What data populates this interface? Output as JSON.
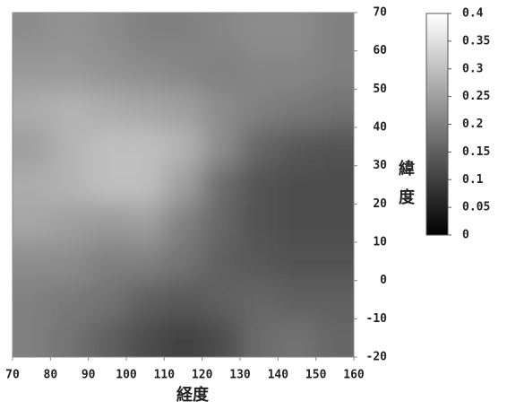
{
  "chart_data": {
    "type": "heatmap",
    "xlabel": "経度",
    "ylabel": "緯度",
    "x": [
      70,
      80,
      90,
      100,
      110,
      120,
      130,
      140,
      150,
      160
    ],
    "y": [
      -20,
      -10,
      0,
      10,
      20,
      30,
      40,
      50,
      60,
      70
    ],
    "z": [
      [
        0.2,
        0.18,
        0.15,
        0.12,
        0.1,
        0.12,
        0.17,
        0.18,
        0.16
      ],
      [
        0.2,
        0.19,
        0.18,
        0.15,
        0.14,
        0.15,
        0.16,
        0.15,
        0.15
      ],
      [
        0.22,
        0.22,
        0.2,
        0.2,
        0.18,
        0.15,
        0.14,
        0.13,
        0.13
      ],
      [
        0.26,
        0.25,
        0.24,
        0.25,
        0.2,
        0.16,
        0.13,
        0.12,
        0.12
      ],
      [
        0.27,
        0.28,
        0.3,
        0.3,
        0.25,
        0.17,
        0.13,
        0.12,
        0.12
      ],
      [
        0.25,
        0.28,
        0.3,
        0.3,
        0.28,
        0.22,
        0.16,
        0.14,
        0.13
      ],
      [
        0.27,
        0.28,
        0.27,
        0.26,
        0.25,
        0.22,
        0.2,
        0.19,
        0.18
      ],
      [
        0.24,
        0.24,
        0.23,
        0.22,
        0.21,
        0.2,
        0.21,
        0.21,
        0.2
      ],
      [
        0.22,
        0.23,
        0.22,
        0.2,
        0.2,
        0.21,
        0.22,
        0.22,
        0.2
      ]
    ],
    "xlim": [
      70,
      160
    ],
    "ylim": [
      -20,
      70
    ],
    "xticks": [
      70,
      80,
      90,
      100,
      110,
      120,
      130,
      140,
      150,
      160
    ],
    "yticks": [
      -20,
      -10,
      0,
      10,
      20,
      30,
      40,
      50,
      60,
      70
    ],
    "zlim": [
      0,
      0.4
    ],
    "zticks": [
      0,
      0.05,
      0.1,
      0.15,
      0.2,
      0.25,
      0.3,
      0.35,
      0.4
    ],
    "colormap": [
      "#000000",
      "#ffffff"
    ]
  }
}
